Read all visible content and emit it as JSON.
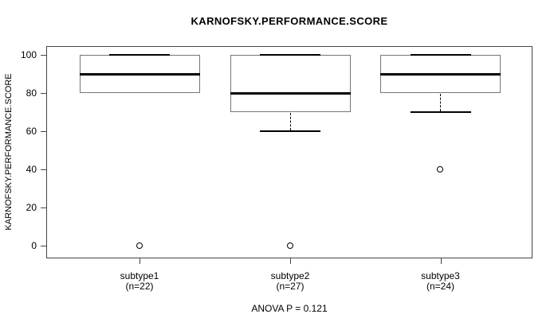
{
  "chart_data": {
    "type": "boxplot",
    "title": "KARNOFSKY.PERFORMANCE.SCORE",
    "ylabel": "KARNOFSKY.PERFORMANCE.SCORE",
    "xlabel": "",
    "yticks": [
      0,
      20,
      40,
      60,
      80,
      100
    ],
    "ylim": [
      0,
      100
    ],
    "grid": false,
    "footnote": "ANOVA P = 0.121",
    "groups": [
      {
        "label": "subtype1",
        "sublabel": "(n=22)",
        "n": 22,
        "q1": 80,
        "median": 90,
        "q3": 100,
        "whisker_low": 80,
        "whisker_high": 100,
        "outliers": [
          0
        ]
      },
      {
        "label": "subtype2",
        "sublabel": "(n=27)",
        "n": 27,
        "q1": 70,
        "median": 80,
        "q3": 100,
        "whisker_low": 60,
        "whisker_high": 100,
        "outliers": [
          0
        ]
      },
      {
        "label": "subtype3",
        "sublabel": "(n=24)",
        "n": 24,
        "q1": 80,
        "median": 90,
        "q3": 100,
        "whisker_low": 70,
        "whisker_high": 100,
        "outliers": [
          40
        ]
      }
    ],
    "colors": {
      "frame": "#454545",
      "box_border": "#757575",
      "line": "#000000",
      "background": "#ffffff"
    }
  }
}
